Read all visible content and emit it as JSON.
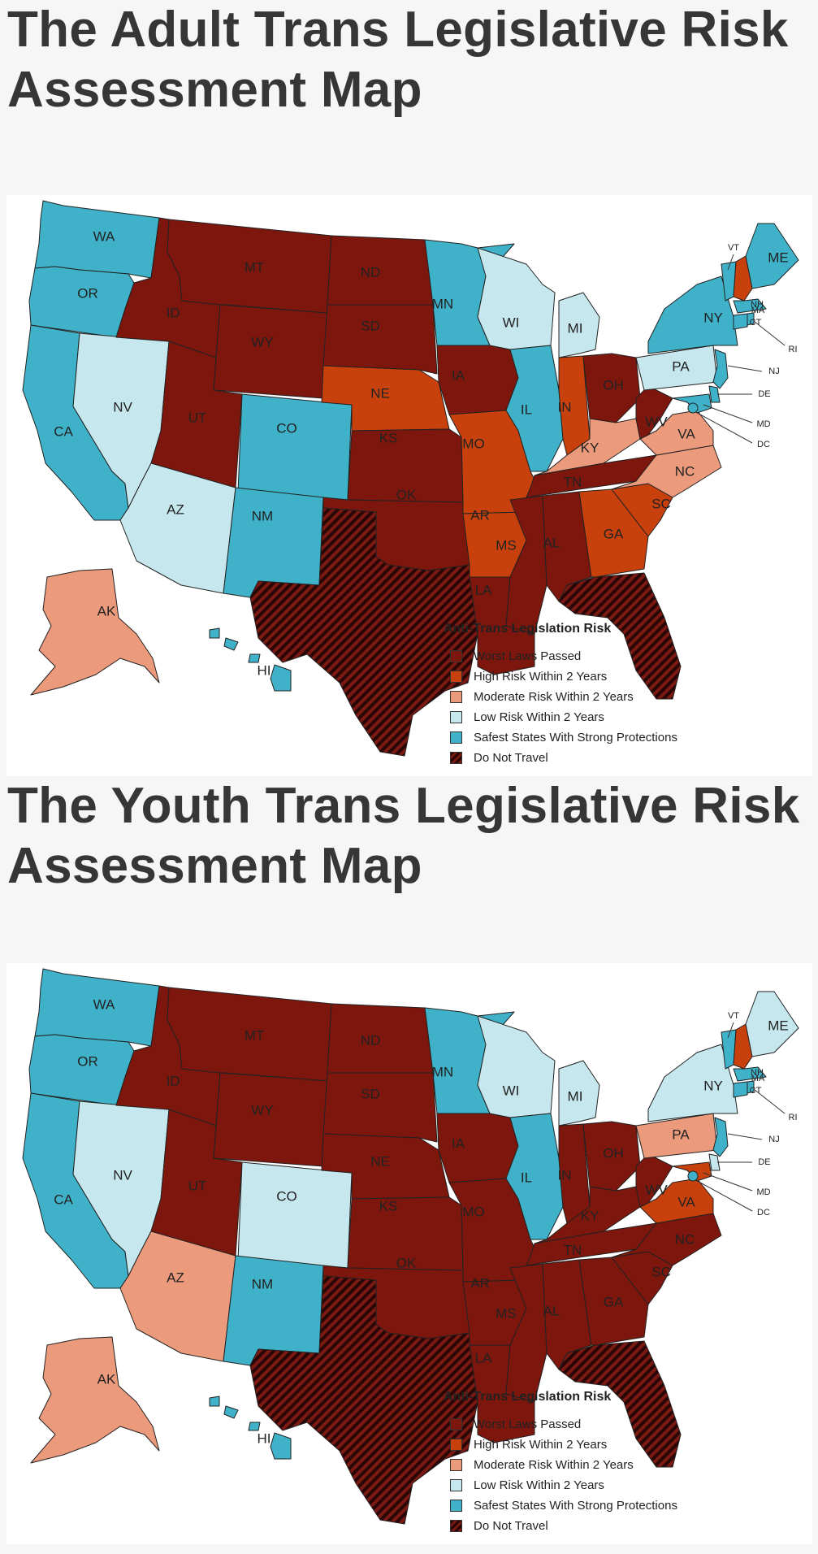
{
  "colors": {
    "worst": "#7d160c",
    "high": "#c8410d",
    "moderate": "#ec9a7c",
    "low": "#c6e7ee",
    "safe": "#3fb2c9",
    "donottravel_dark": "#2a0606",
    "donottravel_light": "#7a1a12"
  },
  "legend": {
    "title": "Anti-Trans Legislation Risk",
    "items": [
      {
        "key": "worst",
        "label": "Worst Laws Passed"
      },
      {
        "key": "high",
        "label": "High Risk Within 2 Years"
      },
      {
        "key": "moderate",
        "label": "Moderate Risk Within 2 Years"
      },
      {
        "key": "low",
        "label": "Low Risk Within 2 Years"
      },
      {
        "key": "safe",
        "label": "Safest States With Strong Protections"
      },
      {
        "key": "donottravel",
        "label": "Do Not Travel"
      }
    ]
  },
  "maps": [
    {
      "title": "The Adult Trans Legislative Risk Assessment Map",
      "states": {
        "WA": "safe",
        "OR": "safe",
        "CA": "safe",
        "NV": "low",
        "ID": "worst",
        "MT": "worst",
        "WY": "worst",
        "UT": "worst",
        "CO": "safe",
        "AZ": "low",
        "NM": "safe",
        "ND": "worst",
        "SD": "worst",
        "NE": "high",
        "KS": "worst",
        "OK": "worst",
        "TX": "donottravel",
        "MN": "safe",
        "IA": "worst",
        "MO": "high",
        "AR": "high",
        "LA": "worst",
        "WI": "low",
        "IL": "safe",
        "MI": "low",
        "IN": "high",
        "OH": "worst",
        "KY": "moderate",
        "TN": "worst",
        "MS": "worst",
        "AL": "worst",
        "GA": "high",
        "FL": "donottravel",
        "SC": "high",
        "NC": "moderate",
        "VA": "moderate",
        "WV": "worst",
        "PA": "low",
        "NY": "safe",
        "VT": "safe",
        "NH": "high",
        "ME": "safe",
        "MA": "safe",
        "RI": "safe",
        "CT": "safe",
        "NJ": "safe",
        "DE": "safe",
        "MD": "safe",
        "DC": "safe",
        "AK": "moderate",
        "HI": "safe"
      }
    },
    {
      "title": "The Youth Trans Legislative Risk Assessment Map",
      "states": {
        "WA": "safe",
        "OR": "safe",
        "CA": "safe",
        "NV": "low",
        "ID": "worst",
        "MT": "worst",
        "WY": "worst",
        "UT": "worst",
        "CO": "low",
        "AZ": "moderate",
        "NM": "safe",
        "ND": "worst",
        "SD": "worst",
        "NE": "worst",
        "KS": "worst",
        "OK": "worst",
        "TX": "donottravel",
        "MN": "safe",
        "IA": "worst",
        "MO": "worst",
        "AR": "worst",
        "LA": "worst",
        "WI": "low",
        "IL": "safe",
        "MI": "low",
        "IN": "worst",
        "OH": "worst",
        "KY": "worst",
        "TN": "worst",
        "MS": "worst",
        "AL": "worst",
        "GA": "worst",
        "FL": "donottravel",
        "SC": "worst",
        "NC": "worst",
        "VA": "high",
        "WV": "worst",
        "PA": "moderate",
        "NY": "low",
        "VT": "safe",
        "NH": "high",
        "ME": "low",
        "MA": "safe",
        "RI": "safe",
        "CT": "safe",
        "NJ": "safe",
        "DE": "low",
        "MD": "high",
        "DC": "safe",
        "AK": "moderate",
        "HI": "safe"
      }
    }
  ],
  "state_labels": [
    "WA",
    "OR",
    "CA",
    "NV",
    "ID",
    "MT",
    "WY",
    "UT",
    "CO",
    "AZ",
    "NM",
    "ND",
    "SD",
    "NE",
    "KS",
    "OK",
    "MN",
    "IA",
    "MO",
    "AR",
    "LA",
    "WI",
    "IL",
    "MI",
    "IN",
    "OH",
    "KY",
    "TN",
    "MS",
    "AL",
    "GA",
    "SC",
    "NC",
    "VA",
    "WV",
    "PA",
    "NY",
    "ME",
    "AK",
    "HI",
    "VT",
    "NH",
    "MA",
    "CT",
    "RI",
    "NJ",
    "DE",
    "MD",
    "DC"
  ]
}
